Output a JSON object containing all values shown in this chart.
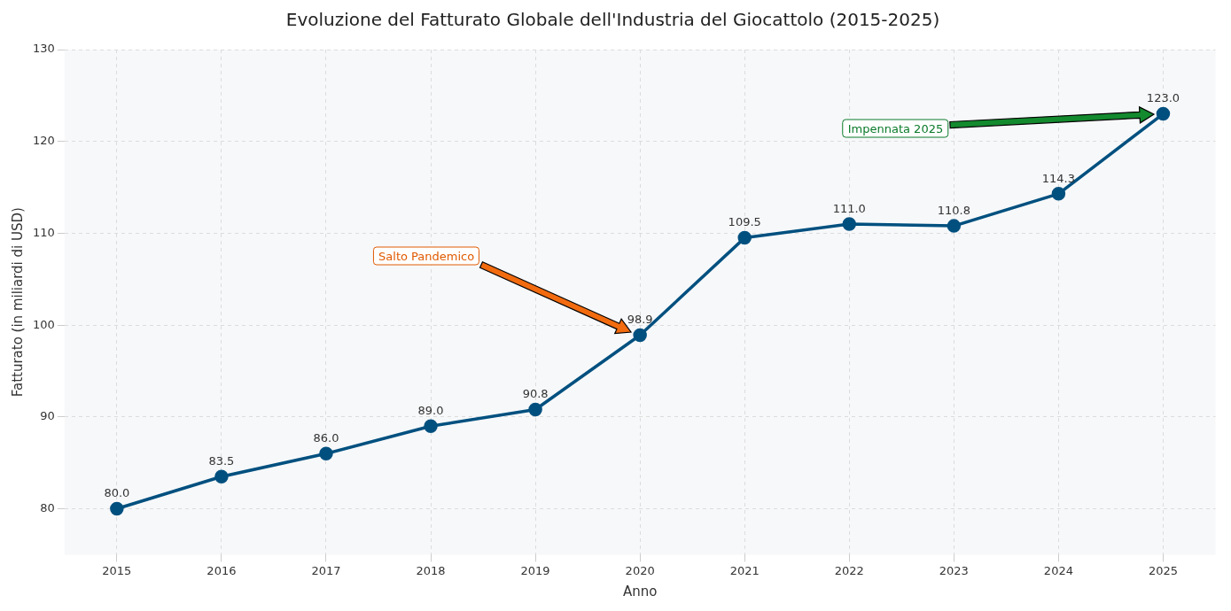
{
  "chart_data": {
    "type": "line",
    "title": "Evoluzione del Fatturato Globale dell'Industria del Giocattolo (2015-2025)",
    "xlabel": "Anno",
    "ylabel": "Fatturato (in miliardi di USD)",
    "x": [
      2015,
      2016,
      2017,
      2018,
      2019,
      2020,
      2021,
      2022,
      2023,
      2024,
      2025
    ],
    "series": [
      {
        "color": "#00507f",
        "values": [
          80.0,
          83.5,
          86.0,
          89.0,
          90.8,
          98.9,
          109.5,
          111.0,
          110.8,
          114.3,
          123.0
        ],
        "value_labels": [
          "80.0",
          "83.5",
          "86.0",
          "89.0",
          "90.8",
          "98.9",
          "109.5",
          "111.0",
          "110.8",
          "114.3",
          "123.0"
        ]
      }
    ],
    "xlim": [
      2014.5,
      2025.5
    ],
    "xticks": [
      2015,
      2016,
      2017,
      2018,
      2019,
      2020,
      2021,
      2022,
      2023,
      2024,
      2025
    ],
    "ylim": [
      75,
      130
    ],
    "yticks": [
      80,
      90,
      100,
      110,
      120,
      130
    ],
    "grid": true,
    "legend": false,
    "marker": "circle",
    "line_style": "solid",
    "annotations": [
      "Salto Pandemico",
      "Impennata 2025"
    ]
  }
}
